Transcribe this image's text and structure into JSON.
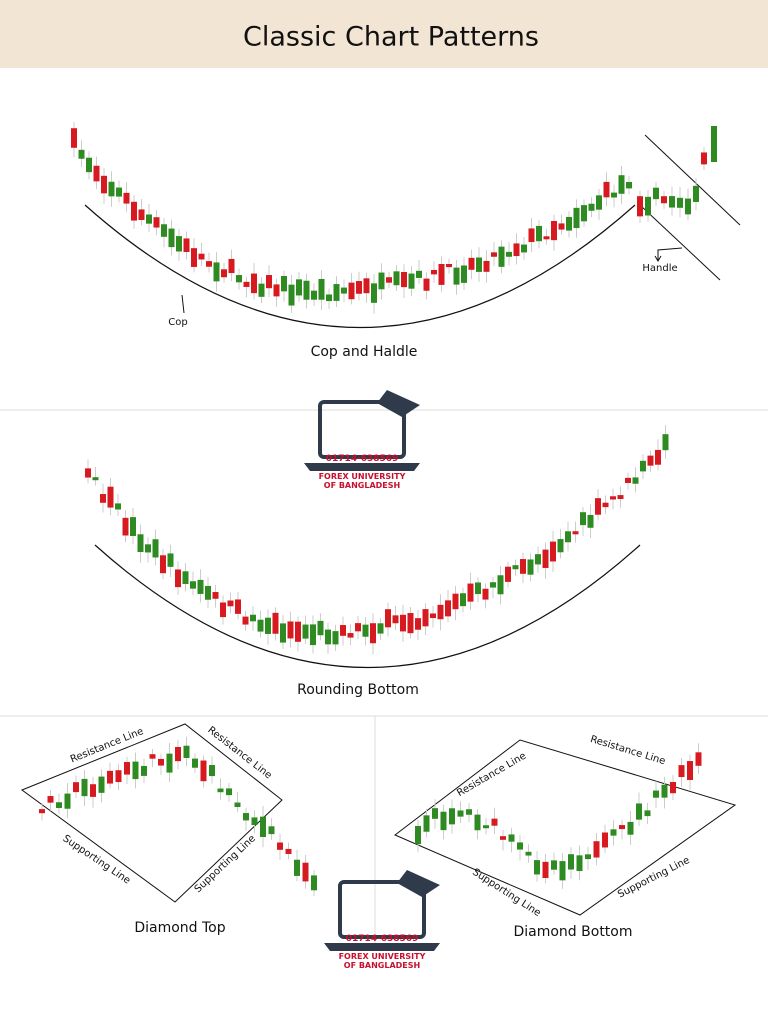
{
  "header": {
    "title": "Classic Chart Patterns"
  },
  "panels": [
    {
      "title": "Cop and Haldle",
      "labels": [
        "Cop",
        "Handle"
      ]
    },
    {
      "title": "Rounding Bottom"
    },
    {
      "title": "Diamond Top",
      "labels": [
        "Resistance Line",
        "Resistance Line",
        "Supporting Line",
        "Supporting Line"
      ]
    },
    {
      "title": "Diamond Bottom",
      "labels": [
        "Resistance Line",
        "Resistance Line",
        "Supporting Line",
        "Supporting Line"
      ]
    }
  ],
  "logos": [
    {
      "phone": "01714-638569",
      "name": [
        "FOREX UNIVERSITY",
        "OF BANGLADESH"
      ]
    },
    {
      "phone": "01714-638569",
      "name": [
        "FOREX UNIVERSITY",
        "OF BANGLADESH"
      ]
    }
  ]
}
